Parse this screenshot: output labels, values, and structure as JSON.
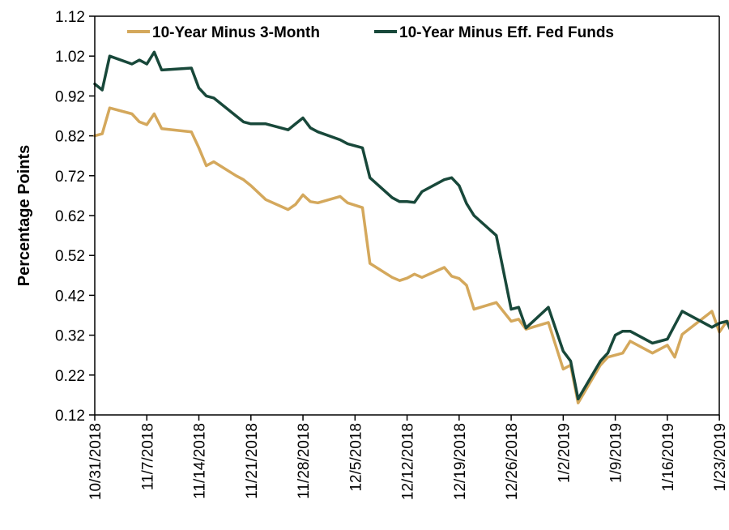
{
  "chart_data": {
    "type": "line",
    "title": "",
    "xlabel": "",
    "ylabel": "Percentage Points",
    "ylim": [
      0.12,
      1.12
    ],
    "y_ticks": [
      "0.12",
      "0.22",
      "0.32",
      "0.42",
      "0.52",
      "0.62",
      "0.72",
      "0.82",
      "0.92",
      "1.02",
      "1.12"
    ],
    "x_ticks": [
      "10/31/2018",
      "11/7/2018",
      "11/14/2018",
      "11/21/2018",
      "11/28/2018",
      "12/5/2018",
      "12/12/2018",
      "12/19/2018",
      "12/26/2018",
      "1/2/2019",
      "1/9/2019",
      "1/16/2019",
      "1/23/2019"
    ],
    "x_range": [
      "10/31/2018",
      "1/23/2019"
    ],
    "grid": false,
    "legend_position": "top",
    "series": [
      {
        "name": "10-Year Minus 3-Month",
        "color": "#D4A85C",
        "points": [
          [
            "10/31/2018",
            0.82
          ],
          [
            "11/1/2018",
            0.825
          ],
          [
            "11/2/2018",
            0.89
          ],
          [
            "11/5/2018",
            0.875
          ],
          [
            "11/6/2018",
            0.855
          ],
          [
            "11/7/2018",
            0.848
          ],
          [
            "11/8/2018",
            0.875
          ],
          [
            "11/9/2018",
            0.838
          ],
          [
            "11/13/2018",
            0.83
          ],
          [
            "11/14/2018",
            0.79
          ],
          [
            "11/15/2018",
            0.745
          ],
          [
            "11/16/2018",
            0.755
          ],
          [
            "11/19/2018",
            0.72
          ],
          [
            "11/20/2018",
            0.71
          ],
          [
            "11/21/2018",
            0.695
          ],
          [
            "11/23/2018",
            0.66
          ],
          [
            "11/26/2018",
            0.635
          ],
          [
            "11/27/2018",
            0.648
          ],
          [
            "11/28/2018",
            0.672
          ],
          [
            "11/29/2018",
            0.655
          ],
          [
            "11/30/2018",
            0.652
          ],
          [
            "12/3/2018",
            0.668
          ],
          [
            "12/4/2018",
            0.652
          ],
          [
            "12/6/2018",
            0.64
          ],
          [
            "12/7/2018",
            0.5
          ],
          [
            "12/10/2018",
            0.465
          ],
          [
            "12/11/2018",
            0.457
          ],
          [
            "12/12/2018",
            0.463
          ],
          [
            "12/13/2018",
            0.473
          ],
          [
            "12/14/2018",
            0.465
          ],
          [
            "12/17/2018",
            0.49
          ],
          [
            "12/18/2018",
            0.468
          ],
          [
            "12/19/2018",
            0.462
          ],
          [
            "12/20/2018",
            0.445
          ],
          [
            "12/21/2018",
            0.385
          ],
          [
            "12/24/2018",
            0.402
          ],
          [
            "12/26/2018",
            0.355
          ],
          [
            "12/27/2018",
            0.36
          ],
          [
            "12/28/2018",
            0.335
          ],
          [
            "12/31/2018",
            0.352
          ],
          [
            "1/2/2019",
            0.235
          ],
          [
            "1/3/2019",
            0.245
          ],
          [
            "1/4/2019",
            0.15
          ],
          [
            "1/7/2019",
            0.245
          ],
          [
            "1/8/2019",
            0.265
          ],
          [
            "1/9/2019",
            0.27
          ],
          [
            "1/10/2019",
            0.275
          ],
          [
            "1/11/2019",
            0.305
          ],
          [
            "1/14/2019",
            0.275
          ],
          [
            "1/15/2019",
            0.285
          ],
          [
            "1/16/2019",
            0.295
          ],
          [
            "1/17/2019",
            0.265
          ],
          [
            "1/18/2019",
            0.322
          ],
          [
            "1/22/2019",
            0.38
          ],
          [
            "1/23/2019",
            0.328
          ],
          [
            "1/24/2019",
            0.355
          ],
          [
            "1/25/2019",
            0.35
          ]
        ]
      },
      {
        "name": "10-Year Minus Eff. Fed Funds",
        "color": "#18483A",
        "points": [
          [
            "10/31/2018",
            0.95
          ],
          [
            "11/1/2018",
            0.935
          ],
          [
            "11/2/2018",
            1.02
          ],
          [
            "11/5/2018",
            1.0
          ],
          [
            "11/6/2018",
            1.01
          ],
          [
            "11/7/2018",
            1.0
          ],
          [
            "11/8/2018",
            1.03
          ],
          [
            "11/9/2018",
            0.985
          ],
          [
            "11/13/2018",
            0.99
          ],
          [
            "11/14/2018",
            0.94
          ],
          [
            "11/15/2018",
            0.92
          ],
          [
            "11/16/2018",
            0.915
          ],
          [
            "11/19/2018",
            0.87
          ],
          [
            "11/20/2018",
            0.855
          ],
          [
            "11/21/2018",
            0.85
          ],
          [
            "11/23/2018",
            0.85
          ],
          [
            "11/26/2018",
            0.835
          ],
          [
            "11/27/2018",
            0.85
          ],
          [
            "11/28/2018",
            0.865
          ],
          [
            "11/29/2018",
            0.84
          ],
          [
            "11/30/2018",
            0.83
          ],
          [
            "12/3/2018",
            0.81
          ],
          [
            "12/4/2018",
            0.8
          ],
          [
            "12/6/2018",
            0.79
          ],
          [
            "12/7/2018",
            0.715
          ],
          [
            "12/10/2018",
            0.665
          ],
          [
            "12/11/2018",
            0.655
          ],
          [
            "12/12/2018",
            0.655
          ],
          [
            "12/13/2018",
            0.653
          ],
          [
            "12/14/2018",
            0.68
          ],
          [
            "12/17/2018",
            0.71
          ],
          [
            "12/18/2018",
            0.715
          ],
          [
            "12/19/2018",
            0.695
          ],
          [
            "12/20/2018",
            0.65
          ],
          [
            "12/21/2018",
            0.62
          ],
          [
            "12/24/2018",
            0.57
          ],
          [
            "12/26/2018",
            0.385
          ],
          [
            "12/27/2018",
            0.39
          ],
          [
            "12/28/2018",
            0.338
          ],
          [
            "12/31/2018",
            0.39
          ],
          [
            "1/2/2019",
            0.28
          ],
          [
            "1/3/2019",
            0.255
          ],
          [
            "1/4/2019",
            0.16
          ],
          [
            "1/7/2019",
            0.255
          ],
          [
            "1/8/2019",
            0.275
          ],
          [
            "1/9/2019",
            0.32
          ],
          [
            "1/10/2019",
            0.33
          ],
          [
            "1/11/2019",
            0.33
          ],
          [
            "1/14/2019",
            0.3
          ],
          [
            "1/15/2019",
            0.305
          ],
          [
            "1/16/2019",
            0.31
          ],
          [
            "1/17/2019",
            0.345
          ],
          [
            "1/18/2019",
            0.38
          ],
          [
            "1/22/2019",
            0.34
          ],
          [
            "1/23/2019",
            0.35
          ],
          [
            "1/24/2019",
            0.355
          ],
          [
            "1/25/2019",
            0.31
          ]
        ]
      }
    ]
  }
}
